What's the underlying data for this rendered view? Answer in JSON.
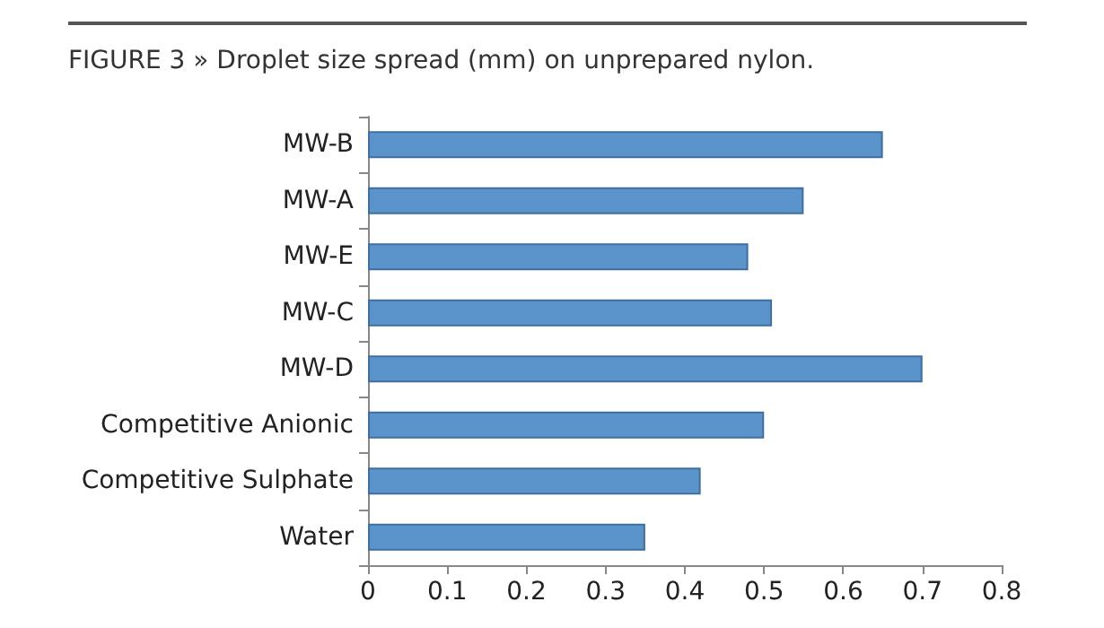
{
  "chart_data": {
    "type": "bar",
    "orientation": "horizontal",
    "title": "FIGURE 3 » Droplet size spread (mm) on unprepared nylon.",
    "categories": [
      "MW-B",
      "MW-A",
      "MW-E",
      "MW-C",
      "MW-D",
      "Competitive Anionic",
      "Competitive Sulphate",
      "Water"
    ],
    "values": [
      0.65,
      0.55,
      0.48,
      0.51,
      0.7,
      0.5,
      0.42,
      0.35
    ],
    "color": "#5b93cb",
    "xlim": [
      0,
      0.8
    ],
    "xticks": [
      0,
      0.1,
      0.2,
      0.3,
      0.4,
      0.5,
      0.6,
      0.7,
      0.8
    ],
    "grid": false
  }
}
